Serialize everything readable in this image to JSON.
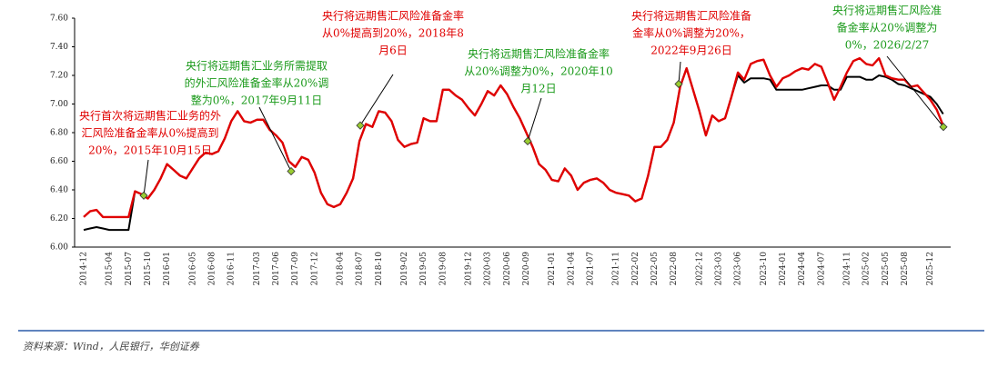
{
  "chart_data": {
    "type": "line",
    "categories": [
      "2014-12",
      null,
      null,
      null,
      "2015-04",
      null,
      null,
      "2015-07",
      null,
      null,
      "2015-10",
      null,
      null,
      "2016-01",
      null,
      null,
      null,
      "2016-05",
      null,
      null,
      "2016-08",
      null,
      null,
      "2016-11",
      null,
      null,
      null,
      "2017-03",
      null,
      null,
      "2017-06",
      null,
      null,
      "2017-09",
      null,
      null,
      "2017-12",
      null,
      null,
      null,
      "2018-04",
      null,
      null,
      "2018-07",
      null,
      null,
      "2018-10",
      null,
      null,
      null,
      "2019-02",
      null,
      null,
      "2019-05",
      null,
      null,
      "2019-08",
      null,
      null,
      null,
      "2019-12",
      null,
      null,
      "2020-03",
      null,
      null,
      "2020-06",
      null,
      null,
      "2020-09",
      null,
      null,
      null,
      "2021-01",
      null,
      null,
      "2021-04",
      null,
      null,
      "2021-07",
      null,
      null,
      null,
      "2021-11",
      null,
      null,
      "2022-02",
      null,
      null,
      "2022-05",
      null,
      null,
      "2022-08",
      null,
      null,
      null,
      "2022-12",
      null,
      null,
      "2023-03",
      null,
      null,
      "2023-06",
      null,
      null,
      null,
      "2023-10",
      null,
      null,
      "2024-01",
      null,
      null,
      "2024-04",
      null,
      null,
      "2024-07",
      null,
      null,
      null,
      "2024-11",
      null,
      null,
      "2025-02",
      null,
      null,
      "2025-05",
      null,
      null,
      "2025-08",
      null,
      null,
      null,
      "2025-12",
      null,
      null
    ],
    "series": [
      {
        "color": "#000000",
        "values": [
          6.12,
          6.13,
          6.14,
          6.13,
          6.12,
          6.12,
          6.12,
          6.12,
          6.39,
          6.37,
          6.34,
          6.4,
          6.48,
          6.58,
          6.54,
          6.5,
          6.48,
          6.55,
          6.62,
          6.66,
          6.65,
          6.67,
          6.76,
          6.88,
          6.95,
          6.88,
          6.87,
          6.89,
          6.89,
          6.82,
          6.78,
          6.73,
          6.6,
          6.56,
          6.63,
          6.61,
          6.52,
          6.38,
          6.3,
          6.28,
          6.3,
          6.38,
          6.48,
          6.74,
          6.86,
          6.84,
          6.95,
          6.94,
          6.88,
          6.75,
          6.7,
          6.72,
          6.73,
          6.9,
          6.88,
          6.88,
          7.1,
          7.1,
          7.06,
          7.03,
          6.97,
          6.92,
          7.0,
          7.09,
          7.06,
          7.13,
          7.07,
          6.98,
          6.9,
          6.8,
          6.7,
          6.58,
          6.54,
          6.47,
          6.46,
          6.55,
          6.5,
          6.4,
          6.45,
          6.47,
          6.48,
          6.45,
          6.4,
          6.38,
          6.37,
          6.36,
          6.32,
          6.34,
          6.5,
          6.7,
          6.7,
          6.75,
          6.87,
          7.12,
          7.25,
          7.1,
          6.95,
          6.78,
          6.92,
          6.88,
          6.9,
          7.05,
          7.2,
          7.15,
          7.18,
          7.18,
          7.18,
          7.17,
          7.1,
          7.1,
          7.1,
          7.1,
          7.1,
          7.11,
          7.12,
          7.13,
          7.13,
          7.1,
          7.1,
          7.19,
          7.19,
          7.19,
          7.17,
          7.17,
          7.2,
          7.19,
          7.17,
          7.14,
          7.13,
          7.11,
          7.09,
          7.07,
          7.05,
          7.0,
          6.93
        ]
      },
      {
        "color": "#e00000",
        "values": [
          6.21,
          6.25,
          6.26,
          6.21,
          6.21,
          6.21,
          6.21,
          6.21,
          6.39,
          6.37,
          6.34,
          6.4,
          6.48,
          6.58,
          6.54,
          6.5,
          6.48,
          6.55,
          6.62,
          6.66,
          6.65,
          6.67,
          6.76,
          6.88,
          6.95,
          6.88,
          6.87,
          6.89,
          6.89,
          6.82,
          6.78,
          6.73,
          6.6,
          6.56,
          6.63,
          6.61,
          6.52,
          6.38,
          6.3,
          6.28,
          6.3,
          6.38,
          6.48,
          6.74,
          6.86,
          6.84,
          6.95,
          6.94,
          6.88,
          6.75,
          6.7,
          6.72,
          6.73,
          6.9,
          6.88,
          6.88,
          7.1,
          7.1,
          7.06,
          7.03,
          6.97,
          6.92,
          7.0,
          7.09,
          7.06,
          7.13,
          7.07,
          6.98,
          6.9,
          6.8,
          6.7,
          6.58,
          6.54,
          6.47,
          6.46,
          6.55,
          6.5,
          6.4,
          6.45,
          6.47,
          6.48,
          6.45,
          6.4,
          6.38,
          6.37,
          6.36,
          6.32,
          6.34,
          6.5,
          6.7,
          6.7,
          6.75,
          6.87,
          7.12,
          7.25,
          7.1,
          6.95,
          6.78,
          6.92,
          6.88,
          6.9,
          7.05,
          7.22,
          7.17,
          7.28,
          7.3,
          7.31,
          7.2,
          7.12,
          7.18,
          7.2,
          7.23,
          7.25,
          7.24,
          7.28,
          7.26,
          7.15,
          7.03,
          7.12,
          7.22,
          7.3,
          7.32,
          7.28,
          7.27,
          7.32,
          7.2,
          7.18,
          7.17,
          7.17,
          7.12,
          7.13,
          7.08,
          7.03,
          6.96,
          6.85
        ]
      }
    ],
    "ylim": [
      6,
      7.6
    ],
    "yticks": [
      {
        "value": 6,
        "label": "6.00"
      },
      {
        "value": 6.2,
        "label": "6.20"
      },
      {
        "value": 6.4,
        "label": "6.40"
      },
      {
        "value": 6.6,
        "label": "6.60"
      },
      {
        "value": 6.8,
        "label": "6.80"
      },
      {
        "value": 7,
        "label": "7.00"
      },
      {
        "value": 7.2,
        "label": "7.20"
      },
      {
        "value": 7.4,
        "label": "7.40"
      },
      {
        "value": 7.6,
        "label": "7.60"
      }
    ],
    "annotations": [
      {
        "lines": [
          "央行首次将远期售汇业务的外",
          "汇风险准备金率从0%提高到",
          "20%，2015年10月15日"
        ],
        "color": "#e00000",
        "value": 6.36
      },
      {
        "lines": [
          "央行将远期售汇业务所需提取",
          "的外汇风险准备金率从20%调",
          "整为0%，2017年9月11日"
        ],
        "color": "#1a9a1a",
        "value": 6.53
      },
      {
        "lines": [
          "央行将远期售汇风险准备金率",
          "从0%提高到20%，2018年8",
          "月6日"
        ],
        "color": "#e00000",
        "value": 6.85
      },
      {
        "lines": [
          "央行将远期售汇风险准备金率",
          "从20%调整为0%，2020年10",
          "月12日"
        ],
        "color": "#1a9a1a",
        "value": 6.74
      },
      {
        "lines": [
          "央行将远期售汇风险准备",
          "金率从0%调整为20%，",
          "2022年9月26日"
        ],
        "color": "#e00000",
        "value": 7.14
      },
      {
        "lines": [
          "央行将远期售汇风险准",
          "备金率从20%调整为",
          "0%，2026/2/27"
        ],
        "color": "#1a9a1a",
        "value": 6.84
      }
    ],
    "source": "资料来源：Wind，人民银行，华创证券"
  }
}
